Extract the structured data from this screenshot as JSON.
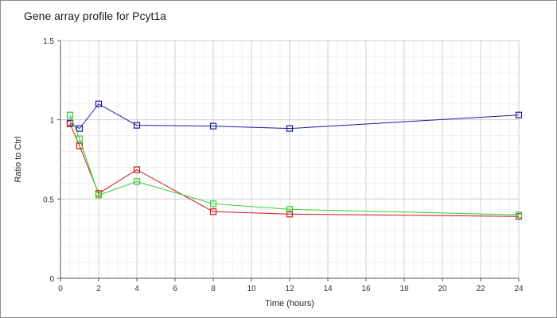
{
  "chart_data": {
    "type": "line",
    "title": "Gene array profile for Pcyt1a",
    "xlabel": "Time (hours)",
    "ylabel": "Ratio to Ctrl",
    "xlim": [
      0,
      24
    ],
    "ylim": [
      0,
      1.5
    ],
    "x_ticks": [
      "0",
      "2",
      "4",
      "6",
      "8",
      "10",
      "12",
      "14",
      "16",
      "18",
      "20",
      "22",
      "24"
    ],
    "y_ticks": [
      "0",
      "0.5",
      "1",
      "1.5"
    ],
    "grid": true,
    "marker": "square",
    "series": [
      {
        "color": "#1a1aa6",
        "x": [
          0.5,
          1,
          2,
          4,
          8,
          12,
          24
        ],
        "y": [
          0.98,
          0.945,
          1.1,
          0.965,
          0.96,
          0.945,
          1.03
        ]
      },
      {
        "color": "#cc1a1a",
        "x": [
          0.5,
          1,
          2,
          4,
          8,
          12,
          24
        ],
        "y": [
          0.975,
          0.835,
          0.535,
          0.685,
          0.42,
          0.405,
          0.39
        ]
      },
      {
        "color": "#33cc33",
        "x": [
          0.5,
          1,
          2,
          4,
          8,
          12,
          24
        ],
        "y": [
          1.03,
          0.88,
          0.525,
          0.61,
          0.47,
          0.435,
          0.4
        ]
      }
    ]
  }
}
